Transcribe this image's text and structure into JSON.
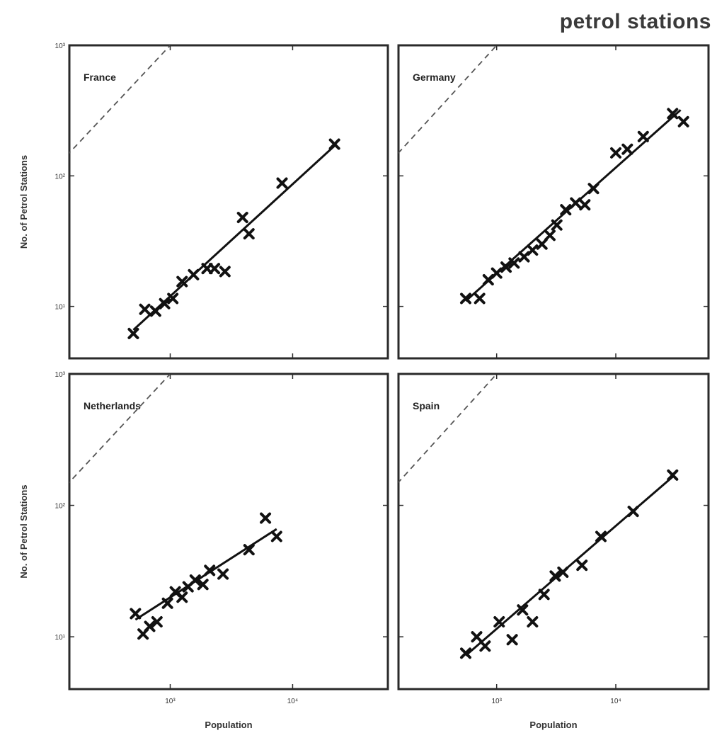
{
  "figure_title": "petrol stations",
  "chart_data": [
    {
      "type": "scatter",
      "panel": "France",
      "log_scale": true,
      "xlabel": "",
      "ylabel": "No. of Petrol Stations",
      "xlim": [
        150,
        60000
      ],
      "ylim": [
        4,
        1000
      ],
      "x_ticks": [
        1000,
        10000
      ],
      "x_tick_labels": [
        "",
        ""
      ],
      "y_ticks": [
        10,
        100,
        1000
      ],
      "y_tick_labels": [
        "10¹",
        "10²",
        "10³"
      ],
      "points": [
        {
          "x": 500,
          "y": 6.2
        },
        {
          "x": 620,
          "y": 9.5
        },
        {
          "x": 760,
          "y": 9.2
        },
        {
          "x": 900,
          "y": 10.5
        },
        {
          "x": 1050,
          "y": 11.5
        },
        {
          "x": 1250,
          "y": 15.5
        },
        {
          "x": 1550,
          "y": 17.5
        },
        {
          "x": 2000,
          "y": 19.5
        },
        {
          "x": 2300,
          "y": 19.5
        },
        {
          "x": 2800,
          "y": 18.5
        },
        {
          "x": 3900,
          "y": 48
        },
        {
          "x": 4400,
          "y": 36
        },
        {
          "x": 8200,
          "y": 88
        },
        {
          "x": 22000,
          "y": 175
        }
      ],
      "fit": [
        [
          500,
          6.6
        ],
        [
          22000,
          170
        ]
      ],
      "grid": false
    },
    {
      "type": "scatter",
      "panel": "Germany",
      "log_scale": true,
      "xlabel": "",
      "ylabel": "",
      "xlim": [
        150,
        60000
      ],
      "ylim": [
        4,
        1000
      ],
      "x_ticks": [
        1000,
        10000
      ],
      "x_tick_labels": [
        "",
        ""
      ],
      "y_ticks": [
        10,
        100,
        1000
      ],
      "y_tick_labels": [
        "",
        "",
        ""
      ],
      "points": [
        {
          "x": 550,
          "y": 11.5
        },
        {
          "x": 720,
          "y": 11.5
        },
        {
          "x": 850,
          "y": 16
        },
        {
          "x": 1000,
          "y": 18
        },
        {
          "x": 1200,
          "y": 20
        },
        {
          "x": 1400,
          "y": 21.5
        },
        {
          "x": 1700,
          "y": 24
        },
        {
          "x": 2000,
          "y": 27
        },
        {
          "x": 2400,
          "y": 30
        },
        {
          "x": 2800,
          "y": 35
        },
        {
          "x": 3200,
          "y": 42
        },
        {
          "x": 3800,
          "y": 55
        },
        {
          "x": 4600,
          "y": 62
        },
        {
          "x": 5500,
          "y": 60
        },
        {
          "x": 6500,
          "y": 80
        },
        {
          "x": 10000,
          "y": 150
        },
        {
          "x": 12500,
          "y": 160
        },
        {
          "x": 17000,
          "y": 200
        },
        {
          "x": 30000,
          "y": 300
        },
        {
          "x": 37000,
          "y": 260
        }
      ],
      "fit": [
        [
          550,
          11
        ],
        [
          35000,
          320
        ]
      ],
      "grid": false
    },
    {
      "type": "scatter",
      "panel": "Netherlands",
      "log_scale": true,
      "xlabel": "Population",
      "ylabel": "No. of Petrol Stations",
      "xlim": [
        150,
        60000
      ],
      "ylim": [
        4,
        1000
      ],
      "x_ticks": [
        1000,
        10000
      ],
      "x_tick_labels": [
        "10³",
        "10⁴"
      ],
      "y_ticks": [
        10,
        100,
        1000
      ],
      "y_tick_labels": [
        "10¹",
        "10²",
        "10³"
      ],
      "points": [
        {
          "x": 520,
          "y": 15
        },
        {
          "x": 600,
          "y": 10.5
        },
        {
          "x": 680,
          "y": 12
        },
        {
          "x": 780,
          "y": 13
        },
        {
          "x": 950,
          "y": 18
        },
        {
          "x": 1100,
          "y": 22
        },
        {
          "x": 1250,
          "y": 20
        },
        {
          "x": 1400,
          "y": 24
        },
        {
          "x": 1600,
          "y": 27
        },
        {
          "x": 1850,
          "y": 25
        },
        {
          "x": 2100,
          "y": 32
        },
        {
          "x": 2700,
          "y": 30
        },
        {
          "x": 4400,
          "y": 46
        },
        {
          "x": 6000,
          "y": 80
        },
        {
          "x": 7400,
          "y": 58
        }
      ],
      "fit": [
        [
          520,
          13.5
        ],
        [
          7400,
          66
        ]
      ],
      "grid": false
    },
    {
      "type": "scatter",
      "panel": "Spain",
      "log_scale": true,
      "xlabel": "Population",
      "ylabel": "",
      "xlim": [
        150,
        60000
      ],
      "ylim": [
        4,
        1000
      ],
      "x_ticks": [
        1000,
        10000
      ],
      "x_tick_labels": [
        "10³",
        "10⁴"
      ],
      "y_ticks": [
        10,
        100,
        1000
      ],
      "y_tick_labels": [
        "",
        "",
        ""
      ],
      "points": [
        {
          "x": 550,
          "y": 7.5
        },
        {
          "x": 680,
          "y": 10
        },
        {
          "x": 800,
          "y": 8.5
        },
        {
          "x": 1050,
          "y": 13
        },
        {
          "x": 1350,
          "y": 9.5
        },
        {
          "x": 1650,
          "y": 16
        },
        {
          "x": 2000,
          "y": 13
        },
        {
          "x": 2500,
          "y": 21
        },
        {
          "x": 3100,
          "y": 29
        },
        {
          "x": 3600,
          "y": 31
        },
        {
          "x": 5200,
          "y": 35
        },
        {
          "x": 7500,
          "y": 58
        },
        {
          "x": 14000,
          "y": 90
        },
        {
          "x": 30000,
          "y": 170
        }
      ],
      "fit": [
        [
          550,
          7.2
        ],
        [
          30000,
          165
        ]
      ],
      "grid": false
    }
  ]
}
